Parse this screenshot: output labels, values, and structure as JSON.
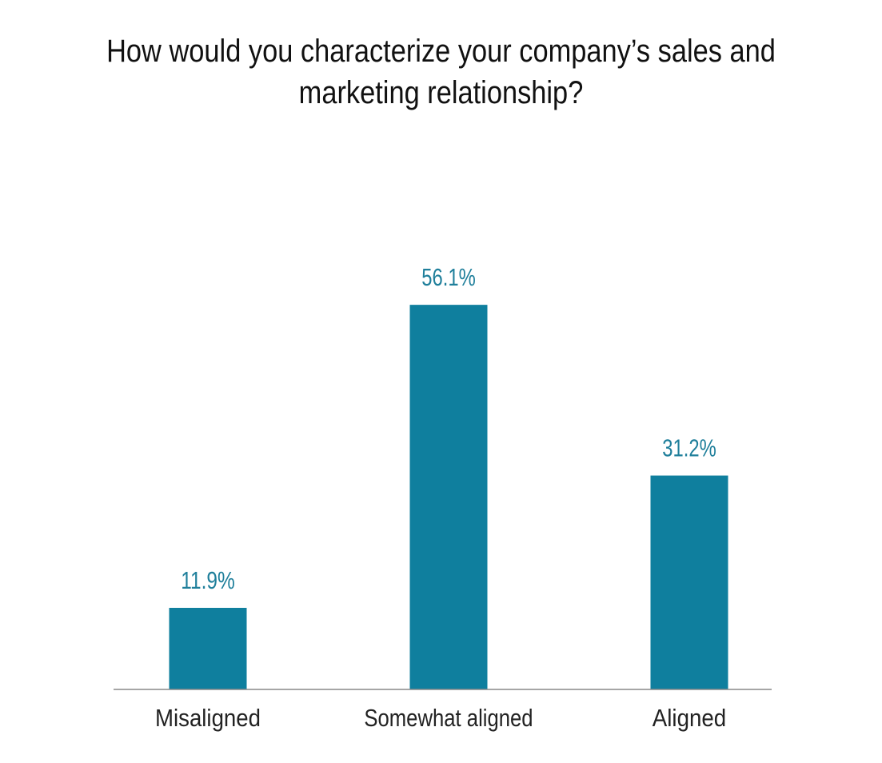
{
  "chart_data": {
    "type": "bar",
    "title": "How would you characterize your company’s sales and marketing relationship?",
    "categories": [
      "Misaligned",
      "Somewhat aligned",
      "Aligned"
    ],
    "values": [
      11.9,
      56.1,
      31.2
    ],
    "data_labels": [
      "11.9%",
      "56.1%",
      "31.2%"
    ],
    "unit": "%",
    "ylim": [
      0,
      70
    ],
    "grid": false,
    "legend": "none",
    "bar_color": "#0f7f9e",
    "label_color": "#1f7f9b",
    "axis_color": "#888888"
  }
}
